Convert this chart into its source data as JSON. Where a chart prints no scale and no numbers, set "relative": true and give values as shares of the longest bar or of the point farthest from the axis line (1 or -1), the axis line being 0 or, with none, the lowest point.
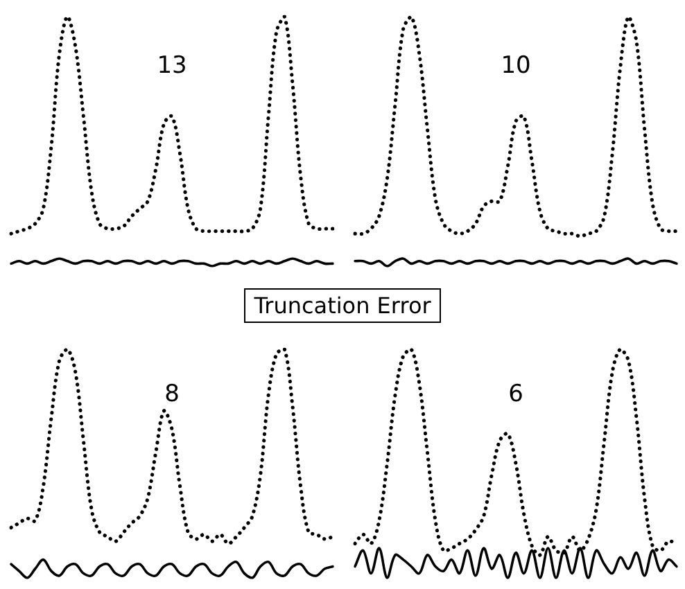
{
  "chart_data": [
    {
      "type": "line",
      "title": "13",
      "relative": true,
      "tick_labels": false,
      "categories": [
        null,
        null,
        null,
        null,
        null,
        null,
        null,
        null,
        null,
        null,
        null,
        null,
        null,
        null,
        null,
        null,
        null,
        null,
        null,
        null,
        null,
        null,
        null,
        null,
        null,
        null,
        null,
        null,
        null,
        null,
        null,
        null,
        null,
        null,
        null,
        null,
        null,
        null,
        null,
        null,
        null
      ],
      "series": [
        {
          "color": "#000000",
          "line_style": "dotted",
          "values": [
            0.13,
            0.14,
            0.15,
            0.17,
            0.23,
            0.48,
            0.85,
            1.0,
            0.88,
            0.6,
            0.3,
            0.17,
            0.15,
            0.15,
            0.16,
            0.2,
            0.23,
            0.26,
            0.39,
            0.57,
            0.6,
            0.45,
            0.23,
            0.15,
            0.14,
            0.14,
            0.14,
            0.14,
            0.14,
            0.14,
            0.15,
            0.23,
            0.6,
            0.94,
            1.0,
            0.73,
            0.36,
            0.17,
            0.15,
            0.15,
            0.15
          ]
        },
        {
          "color": "#000000",
          "line_style": "solid",
          "values": [
            0.01,
            0.02,
            0.01,
            0.02,
            0.01,
            0.02,
            0.03,
            0.02,
            0.01,
            0.02,
            0.02,
            0.01,
            0.02,
            0.01,
            0.02,
            0.02,
            0.01,
            0.02,
            0.01,
            0.02,
            0.01,
            0.02,
            0.02,
            0.01,
            0.01,
            0.0,
            0.01,
            0.01,
            0.02,
            0.01,
            0.02,
            0.01,
            0.02,
            0.01,
            0.02,
            0.03,
            0.02,
            0.01,
            0.02,
            0.01,
            0.01
          ]
        }
      ]
    },
    {
      "type": "line",
      "title": "10",
      "relative": true,
      "tick_labels": false,
      "categories": [
        null,
        null,
        null,
        null,
        null,
        null,
        null,
        null,
        null,
        null,
        null,
        null,
        null,
        null,
        null,
        null,
        null,
        null,
        null,
        null,
        null,
        null,
        null,
        null,
        null,
        null,
        null,
        null,
        null,
        null,
        null,
        null,
        null,
        null,
        null,
        null,
        null,
        null,
        null,
        null,
        null
      ],
      "series": [
        {
          "color": "#000000",
          "line_style": "dotted",
          "values": [
            0.13,
            0.13,
            0.15,
            0.2,
            0.35,
            0.65,
            0.95,
            1.0,
            0.85,
            0.55,
            0.27,
            0.17,
            0.14,
            0.13,
            0.14,
            0.17,
            0.24,
            0.26,
            0.26,
            0.4,
            0.58,
            0.6,
            0.42,
            0.22,
            0.15,
            0.14,
            0.13,
            0.13,
            0.12,
            0.13,
            0.14,
            0.2,
            0.45,
            0.8,
            1.0,
            0.9,
            0.55,
            0.25,
            0.15,
            0.14,
            0.14
          ]
        },
        {
          "color": "#000000",
          "line_style": "solid",
          "values": [
            0.02,
            0.02,
            0.01,
            0.02,
            0.0,
            0.02,
            0.03,
            0.01,
            0.02,
            0.01,
            0.02,
            0.02,
            0.01,
            0.02,
            0.01,
            0.02,
            0.02,
            0.01,
            0.02,
            0.01,
            0.02,
            0.02,
            0.01,
            0.02,
            0.01,
            0.02,
            0.02,
            0.01,
            0.02,
            0.01,
            0.02,
            0.02,
            0.01,
            0.02,
            0.03,
            0.01,
            0.02,
            0.01,
            0.02,
            0.02,
            0.01
          ]
        }
      ]
    },
    {
      "type": "other",
      "title": "Truncation Error"
    },
    {
      "type": "line",
      "title": "8",
      "relative": true,
      "tick_labels": false,
      "categories": [
        null,
        null,
        null,
        null,
        null,
        null,
        null,
        null,
        null,
        null,
        null,
        null,
        null,
        null,
        null,
        null,
        null,
        null,
        null,
        null,
        null,
        null,
        null,
        null,
        null,
        null,
        null,
        null,
        null,
        null,
        null,
        null,
        null,
        null,
        null,
        null,
        null,
        null,
        null,
        null,
        null
      ],
      "series": [
        {
          "color": "#000000",
          "line_style": "dotted",
          "values": [
            0.22,
            0.24,
            0.26,
            0.25,
            0.4,
            0.7,
            0.95,
            1.0,
            0.9,
            0.6,
            0.3,
            0.2,
            0.18,
            0.16,
            0.2,
            0.24,
            0.27,
            0.35,
            0.55,
            0.73,
            0.65,
            0.4,
            0.2,
            0.17,
            0.19,
            0.16,
            0.19,
            0.15,
            0.18,
            0.22,
            0.27,
            0.45,
            0.8,
            0.98,
            1.0,
            0.75,
            0.4,
            0.2,
            0.19,
            0.17,
            0.18
          ]
        },
        {
          "color": "#000000",
          "line_style": "solid",
          "values": [
            0.06,
            0.03,
            0.0,
            0.04,
            0.08,
            0.03,
            0.01,
            0.05,
            0.06,
            0.02,
            0.01,
            0.05,
            0.06,
            0.02,
            0.01,
            0.05,
            0.06,
            0.02,
            0.01,
            0.05,
            0.06,
            0.02,
            0.01,
            0.05,
            0.06,
            0.02,
            0.01,
            0.05,
            0.07,
            0.02,
            0.0,
            0.05,
            0.07,
            0.02,
            0.01,
            0.05,
            0.06,
            0.02,
            0.01,
            0.04,
            0.05
          ]
        }
      ]
    },
    {
      "type": "line",
      "title": "6",
      "relative": true,
      "tick_labels": false,
      "categories": [
        null,
        null,
        null,
        null,
        null,
        null,
        null,
        null,
        null,
        null,
        null,
        null,
        null,
        null,
        null,
        null,
        null,
        null,
        null,
        null,
        null,
        null,
        null,
        null,
        null,
        null,
        null,
        null,
        null,
        null,
        null,
        null,
        null,
        null,
        null,
        null,
        null,
        null,
        null,
        null,
        null
      ],
      "series": [
        {
          "color": "#000000",
          "line_style": "dotted",
          "values": [
            0.15,
            0.19,
            0.15,
            0.25,
            0.5,
            0.8,
            0.97,
            1.0,
            0.85,
            0.55,
            0.25,
            0.12,
            0.13,
            0.15,
            0.17,
            0.21,
            0.27,
            0.45,
            0.6,
            0.63,
            0.5,
            0.28,
            0.14,
            0.1,
            0.18,
            0.12,
            0.11,
            0.18,
            0.12,
            0.17,
            0.3,
            0.6,
            0.9,
            1.0,
            0.95,
            0.7,
            0.35,
            0.14,
            0.12,
            0.16,
            0.15
          ]
        },
        {
          "color": "#000000",
          "line_style": "solid",
          "values": [
            0.05,
            0.12,
            0.02,
            0.13,
            0.0,
            0.1,
            0.08,
            0.05,
            0.02,
            0.1,
            0.05,
            0.03,
            0.08,
            0.02,
            0.12,
            0.01,
            0.13,
            0.04,
            0.1,
            0.0,
            0.11,
            0.02,
            0.12,
            0.0,
            0.13,
            0.0,
            0.12,
            0.02,
            0.13,
            0.0,
            0.12,
            0.06,
            0.02,
            0.09,
            0.04,
            0.11,
            0.01,
            0.12,
            0.03,
            0.08,
            0.05
          ]
        }
      ]
    }
  ]
}
